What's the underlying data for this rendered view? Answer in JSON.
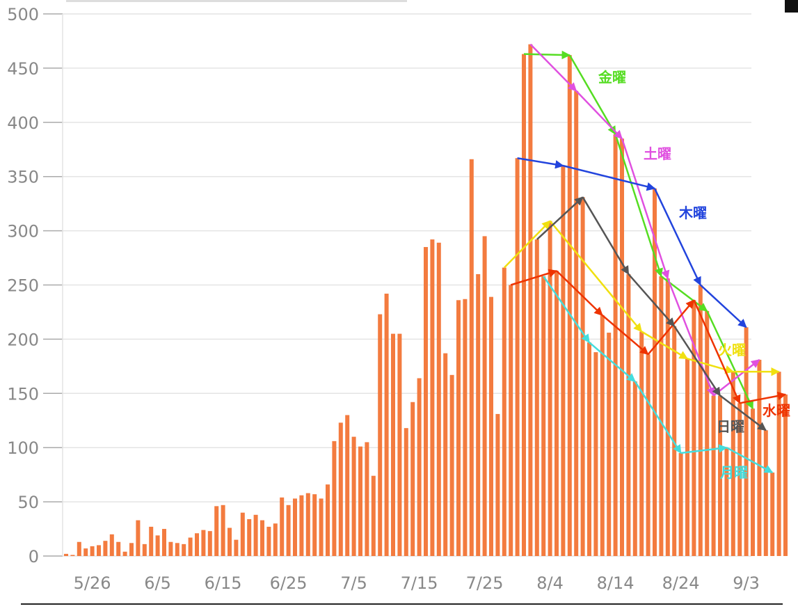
{
  "chart_data": {
    "type": "bar",
    "color": "#f37b3f",
    "categories": [
      null,
      null,
      null,
      null,
      "5/26",
      null,
      null,
      null,
      null,
      null,
      null,
      null,
      null,
      null,
      "6/5",
      null,
      null,
      null,
      null,
      null,
      null,
      null,
      null,
      null,
      "6/15",
      null,
      null,
      null,
      null,
      null,
      null,
      null,
      null,
      null,
      "6/25",
      null,
      null,
      null,
      null,
      null,
      null,
      null,
      null,
      null,
      "7/5",
      null,
      null,
      null,
      null,
      null,
      null,
      null,
      null,
      null,
      "7/15",
      null,
      null,
      null,
      null,
      null,
      null,
      null,
      null,
      null,
      "7/25",
      null,
      null,
      null,
      null,
      null,
      null,
      null,
      null,
      null,
      "8/4",
      null,
      null,
      null,
      null,
      null,
      null,
      null,
      null,
      null,
      "8/14",
      null,
      null,
      null,
      null,
      null,
      null,
      null,
      null,
      null,
      "8/24",
      null,
      null,
      null,
      null,
      null,
      null,
      null,
      null,
      null,
      "9/3",
      null,
      null,
      null,
      null,
      null,
      null
    ],
    "values": [
      2,
      1,
      13,
      7,
      9,
      10,
      14,
      20,
      13,
      4,
      12,
      33,
      11,
      27,
      19,
      25,
      13,
      12,
      11,
      17,
      21,
      24,
      23,
      46,
      47,
      26,
      15,
      40,
      34,
      38,
      33,
      27,
      30,
      54,
      47,
      53,
      56,
      58,
      57,
      53,
      66,
      106,
      123,
      130,
      110,
      101,
      105,
      74,
      223,
      242,
      205,
      205,
      118,
      142,
      164,
      285,
      292,
      289,
      187,
      167,
      236,
      237,
      366,
      260,
      295,
      239,
      131,
      266,
      250,
      367,
      463,
      472,
      292,
      258,
      309,
      263,
      360,
      462,
      429,
      331,
      197,
      188,
      222,
      206,
      389,
      385,
      260,
      161,
      207,
      186,
      339,
      258,
      256,
      212,
      95,
      182,
      236,
      250,
      226,
      148,
      148,
      100,
      170,
      141,
      211,
      136,
      181,
      116,
      77,
      170,
      149
    ],
    "ylim": [
      0,
      500
    ],
    "yticks": [
      0,
      50,
      100,
      150,
      200,
      250,
      300,
      350,
      400,
      450,
      500
    ],
    "grid": true,
    "trend_lines": [
      {
        "name": "金曜",
        "color": "#55dd22",
        "bars": [
          70,
          77,
          84,
          91,
          98,
          105
        ]
      },
      {
        "name": "土曜",
        "color": "#e050e0",
        "bars": [
          71,
          78,
          85,
          92,
          99,
          106
        ]
      },
      {
        "name": "木曜",
        "color": "#2244dd",
        "bars": [
          69,
          76,
          90,
          97,
          104
        ]
      },
      {
        "name": "火曜",
        "color": "#f0e010",
        "bars": [
          67,
          74,
          88,
          95,
          102,
          109
        ]
      },
      {
        "name": "水曜",
        "color": "#ee3300",
        "bars": [
          68,
          75,
          82,
          89,
          96,
          103,
          110
        ]
      },
      {
        "name": "日曜",
        "color": "#555555",
        "bars": [
          72,
          79,
          86,
          93,
          100,
          107
        ]
      },
      {
        "name": "月曜",
        "color": "#44dddd",
        "bars": [
          73,
          80,
          87,
          94,
          101,
          108
        ]
      }
    ]
  }
}
